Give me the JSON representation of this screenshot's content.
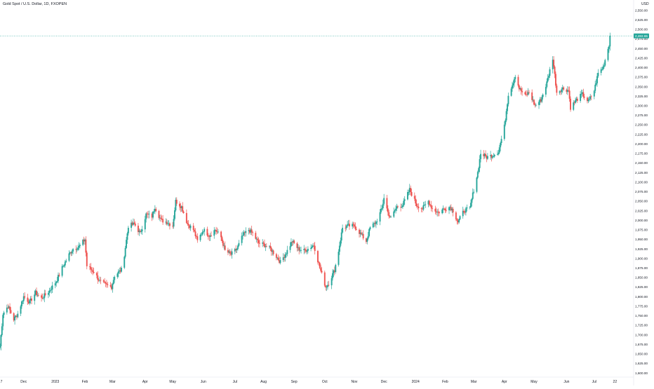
{
  "header": {
    "symbol_title": "Gold Spot / U.S. Dollar, 1D, FXOPEN",
    "currency": "USD"
  },
  "colors": {
    "up": "#26a69a",
    "down": "#ef5350",
    "axis_text": "#131722",
    "price_line": "#26a69a",
    "price_tag_bg": "#26a69a",
    "price_tag_text": "#ffffff",
    "background": "#ffffff",
    "axis_line": "#e0e3eb"
  },
  "chart_data": {
    "type": "candlestick",
    "title": "Gold Spot / U.S. Dollar, 1D, FXOPEN",
    "ylabel": "USD",
    "xlabel": "",
    "grid": false,
    "y_scale": "linear",
    "ylim": [
      1600,
      2562
    ],
    "y_ticks": [
      "2,550.00",
      "2,525.00",
      "2,500.00",
      "2,475.00",
      "2,450.00",
      "2,425.00",
      "2,400.00",
      "2,375.00",
      "2,350.00",
      "2,325.00",
      "2,300.00",
      "2,275.00",
      "2,250.00",
      "2,225.00",
      "2,200.00",
      "2,175.00",
      "2,150.00",
      "2,125.00",
      "2,100.00",
      "2,075.00",
      "2,050.00",
      "2,025.00",
      "2,000.00",
      "1,975.00",
      "1,950.00",
      "1,925.00",
      "1,900.00",
      "1,875.00",
      "1,850.00",
      "1,825.00",
      "1,800.00",
      "1,775.00",
      "1,750.00",
      "1,725.00",
      "1,700.00",
      "1,675.00",
      "1,650.00",
      "1,625.00",
      "1,600.00"
    ],
    "x_labels": [
      {
        "label": "7",
        "x": "2022-11-07"
      },
      {
        "label": "Dec",
        "x": "2022-12-01"
      },
      {
        "label": "2023",
        "x": "2023-01-02"
      },
      {
        "label": "Feb",
        "x": "2023-02-01"
      },
      {
        "label": "Mar",
        "x": "2023-03-01"
      },
      {
        "label": "Apr",
        "x": "2023-04-03"
      },
      {
        "label": "May",
        "x": "2023-05-01"
      },
      {
        "label": "Jun",
        "x": "2023-06-01"
      },
      {
        "label": "Jul",
        "x": "2023-07-03"
      },
      {
        "label": "Aug",
        "x": "2023-08-01"
      },
      {
        "label": "Sep",
        "x": "2023-09-01"
      },
      {
        "label": "Oct",
        "x": "2023-10-02"
      },
      {
        "label": "Nov",
        "x": "2023-11-01"
      },
      {
        "label": "Dec",
        "x": "2023-12-01"
      },
      {
        "label": "2024",
        "x": "2024-01-02"
      },
      {
        "label": "Feb",
        "x": "2024-02-01"
      },
      {
        "label": "Mar",
        "x": "2024-03-01"
      },
      {
        "label": "Apr",
        "x": "2024-04-01"
      },
      {
        "label": "May",
        "x": "2024-05-01"
      },
      {
        "label": "Jun",
        "x": "2024-06-03"
      },
      {
        "label": "Jul",
        "x": "2024-07-01"
      },
      {
        "label": "22",
        "x": "2024-07-22"
      }
    ],
    "x_range": [
      "2022-11-07",
      "2024-07-31"
    ],
    "last_price": 2482.65,
    "last_price_label": "2,482.65",
    "closes": [
      {
        "x": "2022-11-07",
        "y": 1670
      },
      {
        "x": "2022-11-10",
        "y": 1755
      },
      {
        "x": "2022-11-15",
        "y": 1775
      },
      {
        "x": "2022-11-21",
        "y": 1740
      },
      {
        "x": "2022-11-25",
        "y": 1755
      },
      {
        "x": "2022-12-01",
        "y": 1800
      },
      {
        "x": "2022-12-07",
        "y": 1785
      },
      {
        "x": "2022-12-13",
        "y": 1810
      },
      {
        "x": "2022-12-19",
        "y": 1795
      },
      {
        "x": "2022-12-27",
        "y": 1815
      },
      {
        "x": "2023-01-03",
        "y": 1840
      },
      {
        "x": "2023-01-09",
        "y": 1875
      },
      {
        "x": "2023-01-16",
        "y": 1910
      },
      {
        "x": "2023-01-20",
        "y": 1925
      },
      {
        "x": "2023-01-26",
        "y": 1930
      },
      {
        "x": "2023-02-01",
        "y": 1950
      },
      {
        "x": "2023-02-03",
        "y": 1880
      },
      {
        "x": "2023-02-10",
        "y": 1865
      },
      {
        "x": "2023-02-16",
        "y": 1840
      },
      {
        "x": "2023-02-22",
        "y": 1830
      },
      {
        "x": "2023-02-28",
        "y": 1825
      },
      {
        "x": "2023-03-03",
        "y": 1855
      },
      {
        "x": "2023-03-10",
        "y": 1870
      },
      {
        "x": "2023-03-13",
        "y": 1910
      },
      {
        "x": "2023-03-17",
        "y": 1985
      },
      {
        "x": "2023-03-23",
        "y": 1990
      },
      {
        "x": "2023-03-29",
        "y": 1965
      },
      {
        "x": "2023-04-04",
        "y": 2015
      },
      {
        "x": "2023-04-10",
        "y": 2010
      },
      {
        "x": "2023-04-13",
        "y": 2035
      },
      {
        "x": "2023-04-19",
        "y": 2000
      },
      {
        "x": "2023-04-25",
        "y": 1995
      },
      {
        "x": "2023-05-01",
        "y": 1985
      },
      {
        "x": "2023-05-04",
        "y": 2050
      },
      {
        "x": "2023-05-10",
        "y": 2035
      },
      {
        "x": "2023-05-16",
        "y": 1990
      },
      {
        "x": "2023-05-22",
        "y": 1975
      },
      {
        "x": "2023-05-26",
        "y": 1945
      },
      {
        "x": "2023-06-01",
        "y": 1975
      },
      {
        "x": "2023-06-07",
        "y": 1960
      },
      {
        "x": "2023-06-13",
        "y": 1975
      },
      {
        "x": "2023-06-19",
        "y": 1955
      },
      {
        "x": "2023-06-23",
        "y": 1920
      },
      {
        "x": "2023-06-29",
        "y": 1910
      },
      {
        "x": "2023-07-05",
        "y": 1925
      },
      {
        "x": "2023-07-11",
        "y": 1960
      },
      {
        "x": "2023-07-17",
        "y": 1975
      },
      {
        "x": "2023-07-21",
        "y": 1965
      },
      {
        "x": "2023-07-27",
        "y": 1940
      },
      {
        "x": "2023-08-02",
        "y": 1935
      },
      {
        "x": "2023-08-08",
        "y": 1925
      },
      {
        "x": "2023-08-14",
        "y": 1905
      },
      {
        "x": "2023-08-18",
        "y": 1890
      },
      {
        "x": "2023-08-24",
        "y": 1915
      },
      {
        "x": "2023-08-30",
        "y": 1945
      },
      {
        "x": "2023-09-05",
        "y": 1925
      },
      {
        "x": "2023-09-11",
        "y": 1920
      },
      {
        "x": "2023-09-15",
        "y": 1925
      },
      {
        "x": "2023-09-21",
        "y": 1935
      },
      {
        "x": "2023-09-27",
        "y": 1875
      },
      {
        "x": "2023-10-03",
        "y": 1825
      },
      {
        "x": "2023-10-06",
        "y": 1835
      },
      {
        "x": "2023-10-12",
        "y": 1870
      },
      {
        "x": "2023-10-16",
        "y": 1920
      },
      {
        "x": "2023-10-20",
        "y": 1980
      },
      {
        "x": "2023-10-26",
        "y": 1985
      },
      {
        "x": "2023-11-01",
        "y": 1985
      },
      {
        "x": "2023-11-07",
        "y": 1965
      },
      {
        "x": "2023-11-13",
        "y": 1945
      },
      {
        "x": "2023-11-17",
        "y": 1980
      },
      {
        "x": "2023-11-23",
        "y": 1995
      },
      {
        "x": "2023-11-29",
        "y": 2030
      },
      {
        "x": "2023-12-01",
        "y": 2060
      },
      {
        "x": "2023-12-05",
        "y": 2020
      },
      {
        "x": "2023-12-08",
        "y": 2005
      },
      {
        "x": "2023-12-14",
        "y": 2035
      },
      {
        "x": "2023-12-20",
        "y": 2040
      },
      {
        "x": "2023-12-27",
        "y": 2080
      },
      {
        "x": "2024-01-03",
        "y": 2040
      },
      {
        "x": "2024-01-09",
        "y": 2030
      },
      {
        "x": "2024-01-15",
        "y": 2050
      },
      {
        "x": "2024-01-19",
        "y": 2030
      },
      {
        "x": "2024-01-25",
        "y": 2020
      },
      {
        "x": "2024-01-31",
        "y": 2030
      },
      {
        "x": "2024-02-06",
        "y": 2035
      },
      {
        "x": "2024-02-09",
        "y": 2025
      },
      {
        "x": "2024-02-14",
        "y": 1995
      },
      {
        "x": "2024-02-20",
        "y": 2025
      },
      {
        "x": "2024-02-26",
        "y": 2030
      },
      {
        "x": "2024-03-01",
        "y": 2080
      },
      {
        "x": "2024-03-05",
        "y": 2125
      },
      {
        "x": "2024-03-08",
        "y": 2175
      },
      {
        "x": "2024-03-14",
        "y": 2165
      },
      {
        "x": "2024-03-20",
        "y": 2170
      },
      {
        "x": "2024-03-26",
        "y": 2180
      },
      {
        "x": "2024-04-01",
        "y": 2245
      },
      {
        "x": "2024-04-05",
        "y": 2330
      },
      {
        "x": "2024-04-09",
        "y": 2355
      },
      {
        "x": "2024-04-12",
        "y": 2380
      },
      {
        "x": "2024-04-16",
        "y": 2345
      },
      {
        "x": "2024-04-22",
        "y": 2325
      },
      {
        "x": "2024-04-26",
        "y": 2335
      },
      {
        "x": "2024-05-02",
        "y": 2300
      },
      {
        "x": "2024-05-08",
        "y": 2315
      },
      {
        "x": "2024-05-14",
        "y": 2360
      },
      {
        "x": "2024-05-20",
        "y": 2425
      },
      {
        "x": "2024-05-24",
        "y": 2335
      },
      {
        "x": "2024-05-30",
        "y": 2345
      },
      {
        "x": "2024-06-05",
        "y": 2340
      },
      {
        "x": "2024-06-07",
        "y": 2295
      },
      {
        "x": "2024-06-13",
        "y": 2315
      },
      {
        "x": "2024-06-19",
        "y": 2330
      },
      {
        "x": "2024-06-25",
        "y": 2310
      },
      {
        "x": "2024-07-01",
        "y": 2340
      },
      {
        "x": "2024-07-05",
        "y": 2385
      },
      {
        "x": "2024-07-10",
        "y": 2400
      },
      {
        "x": "2024-07-16",
        "y": 2460
      },
      {
        "x": "2024-07-17",
        "y": 2482.65
      }
    ]
  }
}
